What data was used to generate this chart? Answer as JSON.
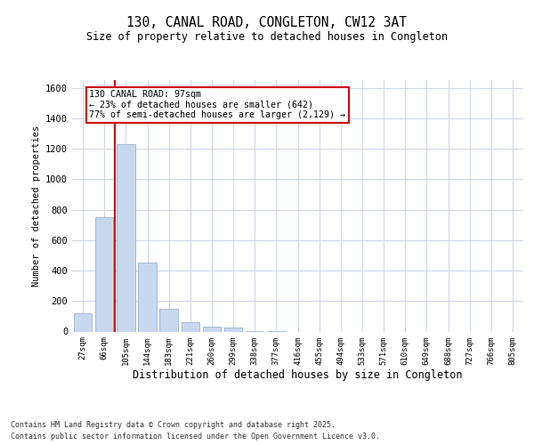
{
  "title": "130, CANAL ROAD, CONGLETON, CW12 3AT",
  "subtitle": "Size of property relative to detached houses in Congleton",
  "xlabel": "Distribution of detached houses by size in Congleton",
  "ylabel": "Number of detached properties",
  "categories": [
    "27sqm",
    "66sqm",
    "105sqm",
    "144sqm",
    "183sqm",
    "221sqm",
    "260sqm",
    "299sqm",
    "338sqm",
    "377sqm",
    "416sqm",
    "455sqm",
    "494sqm",
    "533sqm",
    "571sqm",
    "610sqm",
    "649sqm",
    "688sqm",
    "727sqm",
    "766sqm",
    "805sqm"
  ],
  "values": [
    120,
    750,
    1230,
    450,
    150,
    60,
    35,
    25,
    5,
    2,
    0,
    0,
    0,
    0,
    0,
    0,
    0,
    0,
    0,
    0,
    0
  ],
  "bar_color": "#c8d8ee",
  "bar_edge_color": "#9ab4cc",
  "bar_width": 0.85,
  "red_line_color": "#cc0000",
  "annotation_line1": "130 CANAL ROAD: 97sqm",
  "annotation_line2": "← 23% of detached houses are smaller (642)",
  "annotation_line3": "77% of semi-detached houses are larger (2,129) →",
  "annotation_box_edge_color": "#cc0000",
  "ylim": [
    0,
    1650
  ],
  "yticks": [
    0,
    200,
    400,
    600,
    800,
    1000,
    1200,
    1400,
    1600
  ],
  "bg_color": "#ffffff",
  "plot_bg_color": "#ffffff",
  "grid_color": "#d0d8e8",
  "footer_line1": "Contains HM Land Registry data © Crown copyright and database right 2025.",
  "footer_line2": "Contains public sector information licensed under the Open Government Licence v3.0."
}
